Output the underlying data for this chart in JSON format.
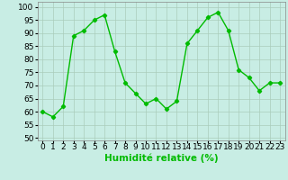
{
  "x": [
    0,
    1,
    2,
    3,
    4,
    5,
    6,
    7,
    8,
    9,
    10,
    11,
    12,
    13,
    14,
    15,
    16,
    17,
    18,
    19,
    20,
    21,
    22,
    23
  ],
  "y": [
    60,
    58,
    62,
    89,
    91,
    95,
    97,
    83,
    71,
    67,
    63,
    65,
    61,
    64,
    86,
    91,
    96,
    98,
    91,
    76,
    73,
    68,
    71,
    71
  ],
  "line_color": "#00bb00",
  "marker": "D",
  "marker_size": 2.2,
  "linewidth": 1.0,
  "bg_color": "#c8ede4",
  "grid_color": "#aaccbb",
  "xlabel": "Humidité relative (%)",
  "ylabel_ticks": [
    50,
    55,
    60,
    65,
    70,
    75,
    80,
    85,
    90,
    95,
    100
  ],
  "ylim": [
    49,
    102
  ],
  "xlim": [
    -0.5,
    23.5
  ],
  "xlabel_fontsize": 7.5,
  "tick_fontsize": 6.5
}
